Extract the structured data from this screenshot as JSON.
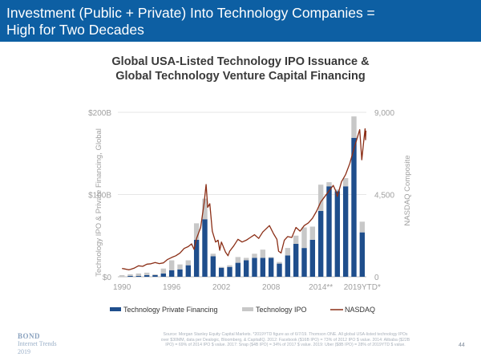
{
  "page": {
    "title_line1": "Investment (Public + Private) Into Technology Companies =",
    "title_line2": "High for Two Decades",
    "chart_title_line1": "Global USA-Listed Technology IPO Issuance &",
    "chart_title_line2": "Global Technology Venture Capital Financing",
    "footer_brand": "BOND",
    "footer_subtitle_line1": "Internet Trends",
    "footer_subtitle_line2": "2019",
    "source_line1": "Source: Morgan Stanley Equity Capital Markets. *2019YTD figure as of 6/7/19. Thomson ONE. All global USA-listed technology IPOs",
    "source_line2": "over $30MM, data per Dealogic, Bloomberg, & CapitalIQ. 2012: Facebook ($16B IPO) = 73% of 2012 IPO $ value. 2014: Alibaba ($22B",
    "source_line3": "IPO) = 69% of 2014 IPO $ value. 2017: Snap ($4B IPO) = 34% of 2017 $ value. 2019: Uber ($8B IPO) = 28% of 2019YTD $ value.",
    "page_number": "44"
  },
  "colors": {
    "header": "#0d5fa3",
    "private": "#1f4e8c",
    "ipo": "#c8c8c8",
    "nasdaq": "#8b2e16",
    "axis_text": "#a0a0a0"
  },
  "chart_data": {
    "type": "bar",
    "stacked": true,
    "title": "Global USA-Listed Technology IPO Issuance & Global Technology Venture Capital Financing",
    "ylabel": "Technology IPO & Private Financing, Global",
    "y2label": "NASDAQ Composite",
    "ylim": [
      0,
      200
    ],
    "y2lim": [
      0,
      9000
    ],
    "y_tick_labels": [
      "$0",
      "$100B",
      "$200B"
    ],
    "y2_tick_labels": [
      "0",
      "4,500",
      "9,000"
    ],
    "x_tick_labels": [
      "1990",
      "1996",
      "2002",
      "2008",
      "2014**",
      "2019YTD*"
    ],
    "categories": [
      "1990",
      "1991",
      "1992",
      "1993",
      "1994",
      "1995",
      "1996",
      "1997",
      "1998",
      "1999",
      "2000",
      "2001",
      "2002",
      "2003",
      "2004",
      "2005",
      "2006",
      "2007",
      "2008",
      "2009",
      "2010",
      "2011",
      "2012",
      "2013",
      "2014",
      "2015",
      "2016",
      "2017",
      "2018",
      "2019YTD"
    ],
    "series": [
      {
        "name": "Technology Private Financing",
        "values": [
          0,
          1,
          1,
          2,
          2,
          4,
          8,
          9,
          14,
          45,
          70,
          25,
          11,
          12,
          17,
          20,
          23,
          23,
          23,
          16,
          26,
          40,
          35,
          45,
          80,
          110,
          104,
          110,
          169,
          54
        ]
      },
      {
        "name": "Technology IPO",
        "values": [
          2,
          2,
          3,
          3,
          1,
          6,
          12,
          6,
          6,
          20,
          25,
          3,
          1,
          2,
          7,
          3,
          5,
          10,
          1,
          2,
          9,
          10,
          25,
          16,
          32,
          5,
          2,
          10,
          26,
          13
        ]
      },
      {
        "name": "NASDAQ",
        "axis": "right",
        "points": [
          [
            1990.0,
            455
          ],
          [
            1990.3,
            430
          ],
          [
            1990.8,
            380
          ],
          [
            1991.0,
            400
          ],
          [
            1991.5,
            480
          ],
          [
            1992.0,
            600
          ],
          [
            1992.5,
            570
          ],
          [
            1993.0,
            690
          ],
          [
            1993.5,
            710
          ],
          [
            1994.0,
            780
          ],
          [
            1994.5,
            720
          ],
          [
            1995.0,
            760
          ],
          [
            1995.5,
            950
          ],
          [
            1996.0,
            1060
          ],
          [
            1996.5,
            1150
          ],
          [
            1997.0,
            1300
          ],
          [
            1997.5,
            1550
          ],
          [
            1998.0,
            1650
          ],
          [
            1998.4,
            1800
          ],
          [
            1998.7,
            1500
          ],
          [
            1999.0,
            2100
          ],
          [
            1999.5,
            2700
          ],
          [
            1999.9,
            4000
          ],
          [
            2000.15,
            5050
          ],
          [
            2000.35,
            3800
          ],
          [
            2000.6,
            4000
          ],
          [
            2000.9,
            2500
          ],
          [
            2001.3,
            1900
          ],
          [
            2001.6,
            2000
          ],
          [
            2001.8,
            1450
          ],
          [
            2002.0,
            1900
          ],
          [
            2002.5,
            1350
          ],
          [
            2002.8,
            1150
          ],
          [
            2003.0,
            1400
          ],
          [
            2003.5,
            1700
          ],
          [
            2004.0,
            2050
          ],
          [
            2004.5,
            1900
          ],
          [
            2005.0,
            2000
          ],
          [
            2005.5,
            2150
          ],
          [
            2006.0,
            2300
          ],
          [
            2006.5,
            2100
          ],
          [
            2007.0,
            2450
          ],
          [
            2007.8,
            2800
          ],
          [
            2008.3,
            2350
          ],
          [
            2008.7,
            2050
          ],
          [
            2008.9,
            1400
          ],
          [
            2009.2,
            1300
          ],
          [
            2009.6,
            2000
          ],
          [
            2010.0,
            2200
          ],
          [
            2010.5,
            2150
          ],
          [
            2011.0,
            2700
          ],
          [
            2011.5,
            2500
          ],
          [
            2012.0,
            2800
          ],
          [
            2012.5,
            2950
          ],
          [
            2013.0,
            3200
          ],
          [
            2013.5,
            3600
          ],
          [
            2014.0,
            4100
          ],
          [
            2014.5,
            4400
          ],
          [
            2015.0,
            4700
          ],
          [
            2015.5,
            5000
          ],
          [
            2015.8,
            4700
          ],
          [
            2016.0,
            4400
          ],
          [
            2016.5,
            5200
          ],
          [
            2017.0,
            5600
          ],
          [
            2017.5,
            6200
          ],
          [
            2018.0,
            7000
          ],
          [
            2018.7,
            8050
          ],
          [
            2018.95,
            6400
          ],
          [
            2019.2,
            7500
          ],
          [
            2019.35,
            8100
          ],
          [
            2019.4,
            7500
          ],
          [
            2019.45,
            8000
          ]
        ]
      }
    ],
    "legend": [
      "Technology Private Financing",
      "Technology IPO",
      "NASDAQ"
    ],
    "legend_position": "bottom"
  }
}
